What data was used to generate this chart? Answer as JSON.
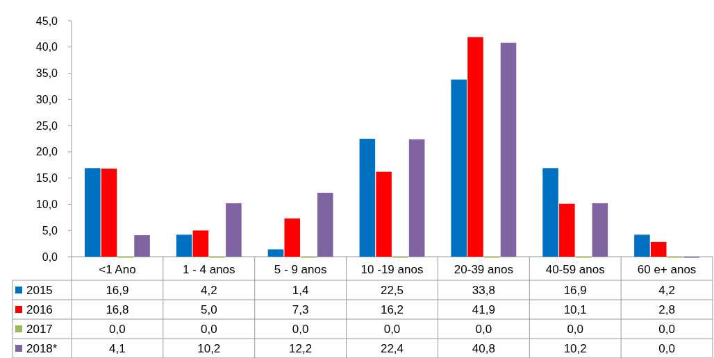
{
  "chart_data": {
    "type": "bar",
    "categories": [
      "<1 Ano",
      "1 - 4 anos",
      "5 - 9 anos",
      "10 -19 anos",
      "20-39 anos",
      "40-59 anos",
      "60 e+ anos"
    ],
    "series": [
      {
        "name": "2015",
        "color": "#0070c0",
        "values": [
          16.9,
          4.2,
          1.4,
          22.5,
          33.8,
          16.9,
          4.2
        ],
        "value_labels": [
          "16,9",
          "4,2",
          "1,4",
          "22,5",
          "33,8",
          "16,9",
          "4,2"
        ]
      },
      {
        "name": "2016",
        "color": "#ff0000",
        "values": [
          16.8,
          5.0,
          7.3,
          16.2,
          41.9,
          10.1,
          2.8
        ],
        "value_labels": [
          "16,8",
          "5,0",
          "7,3",
          "16,2",
          "41,9",
          "10,1",
          "2,8"
        ]
      },
      {
        "name": "2017",
        "color": "#9bbb59",
        "values": [
          0,
          0,
          0,
          0,
          0,
          0,
          0
        ],
        "value_labels": [
          "0,0",
          "0,0",
          "0,0",
          "0,0",
          "0,0",
          "0,0",
          "0,0"
        ]
      },
      {
        "name": "2018*",
        "color": "#8064a2",
        "values": [
          4.1,
          10.2,
          12.2,
          22.4,
          40.8,
          10.2,
          0
        ],
        "value_labels": [
          "4,1",
          "10,2",
          "12,2",
          "22,4",
          "40,8",
          "10,2",
          "0,0"
        ]
      }
    ],
    "ylim": [
      0,
      45
    ],
    "yticks": [
      {
        "value": 0,
        "label": "0,0"
      },
      {
        "value": 5,
        "label": "5,0"
      },
      {
        "value": 10,
        "label": "10,0"
      },
      {
        "value": 15,
        "label": "15,0"
      },
      {
        "value": 20,
        "label": "20,0"
      },
      {
        "value": 25,
        "label": "25,0"
      },
      {
        "value": 30,
        "label": "30,0"
      },
      {
        "value": 35,
        "label": "35,0"
      },
      {
        "value": 40,
        "label": "40,0"
      },
      {
        "value": 45,
        "label": "45,0"
      }
    ],
    "legend": "bottom left",
    "grid": false
  }
}
